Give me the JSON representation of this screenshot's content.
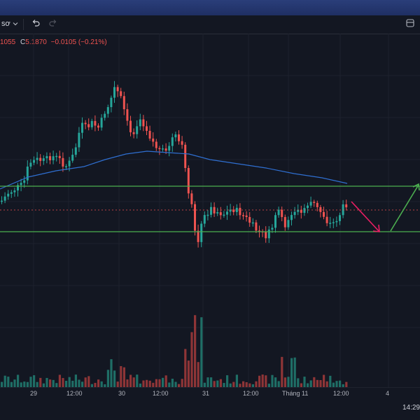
{
  "toolbar": {
    "symbol_fragment": "sơ",
    "chevron_icon": "chevron-down-icon",
    "undo_icon": "undo-icon",
    "redo_icon": "redo-icon"
  },
  "ohlc": {
    "open_fragment": "1055",
    "close_label": "C",
    "close_value": "5.1870",
    "change": "−0.0105 (−0.21%)"
  },
  "time_axis": {
    "labels": [
      "29",
      "12:00",
      "30",
      "12:00",
      "31",
      "12:00",
      "Tháng 11",
      "12:00",
      "4"
    ]
  },
  "status": {
    "clock": "14:29"
  },
  "colors": {
    "up": "#26a69a",
    "down": "#ef5350",
    "ma": "#2f6fd1",
    "support_resistance": "#4caf50",
    "arrow_down": "#e91e63",
    "arrow_up": "#4caf50"
  }
}
